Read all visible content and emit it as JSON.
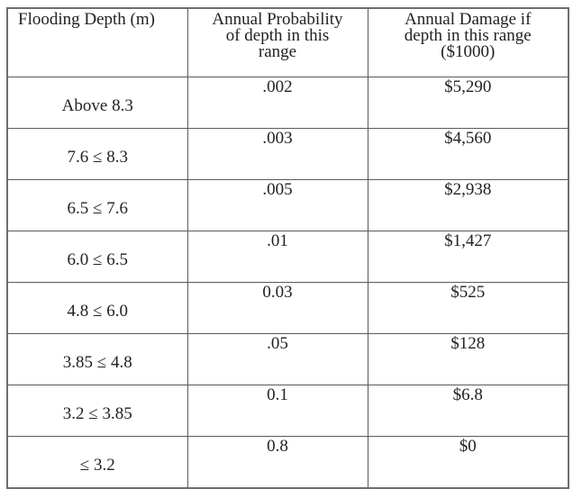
{
  "table": {
    "headers": [
      {
        "lines": [
          "Flooding Depth  (m)"
        ]
      },
      {
        "lines": [
          "Annual Probability",
          "of depth in this",
          "range"
        ]
      },
      {
        "lines": [
          "Annual Damage if",
          "depth in this range",
          "($1000)"
        ]
      }
    ],
    "rows": [
      {
        "depth": "Above 8.3",
        "probability": ".002",
        "damage": "$5,290"
      },
      {
        "depth": "7.6 ≤ 8.3",
        "probability": ".003",
        "damage": "$4,560"
      },
      {
        "depth": "6.5 ≤ 7.6",
        "probability": ".005",
        "damage": "$2,938"
      },
      {
        "depth": "6.0 ≤ 6.5",
        "probability": ".01",
        "damage": "$1,427"
      },
      {
        "depth": "4.8 ≤ 6.0",
        "probability": "0.03",
        "damage": "$525"
      },
      {
        "depth": "3.85 ≤ 4.8",
        "probability": ".05",
        "damage": "$128"
      },
      {
        "depth": "3.2 ≤ 3.85",
        "probability": "0.1",
        "damage": "$6.8"
      },
      {
        "depth": "≤ 3.2",
        "probability": "0.8",
        "damage": "$0"
      }
    ]
  }
}
